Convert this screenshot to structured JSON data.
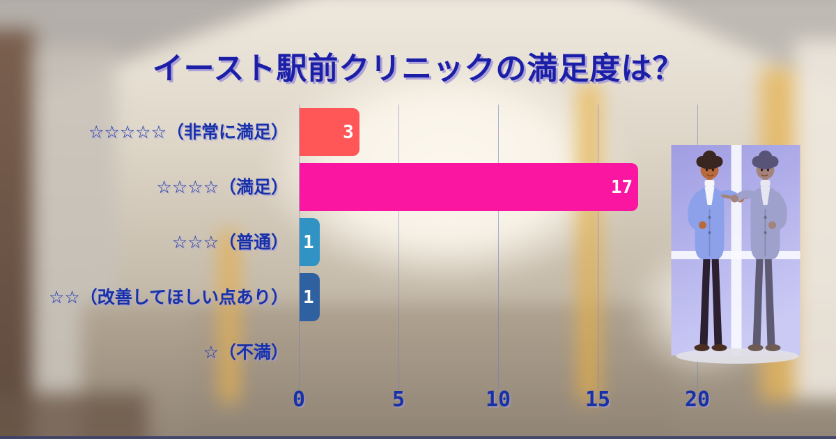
{
  "page": {
    "title": "イースト駅前クリニックの満足度は？",
    "title_color": "#1B1FA8",
    "label_color": "#1731A9"
  },
  "chart_data": {
    "type": "bar",
    "orientation": "horizontal",
    "title": "イースト駅前クリニックの満足度は？",
    "categories": [
      "☆☆☆☆☆（非常に満足）",
      "☆☆☆☆（満足）",
      "☆☆☆（普通）",
      "☆☆（改善してほしい点あり）",
      "☆（不満）"
    ],
    "values": [
      3,
      17,
      1,
      1,
      0
    ],
    "bar_colors": [
      "#FF5757",
      "#FA16A0",
      "#3093C4",
      "#2F609F",
      "transparent"
    ],
    "x_ticks": [
      0,
      5,
      10,
      15,
      20
    ],
    "xlim": [
      0,
      20
    ],
    "grid": true,
    "legend": false,
    "value_label_color": "#FFFFFF",
    "gridline_color": "#6E7DB9"
  },
  "illustration": {
    "name": "man-pointing-at-mirror-reflection",
    "background_color": "#A8A5E7"
  }
}
